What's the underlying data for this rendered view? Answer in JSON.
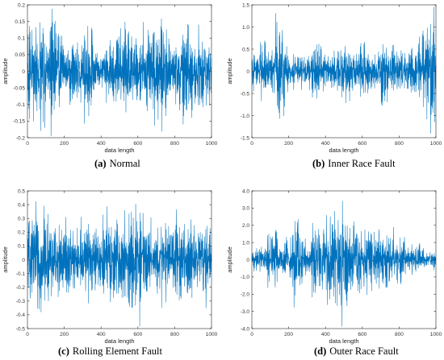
{
  "figure": {
    "panels": [
      {
        "letter": "(a)",
        "caption": "Normal"
      },
      {
        "letter": "(b)",
        "caption": "Inner Race Fault"
      },
      {
        "letter": "(c)",
        "caption": "Rolling Element Fault"
      },
      {
        "letter": "(d)",
        "caption": "Outer Race Fault"
      }
    ]
  },
  "chart_data": [
    {
      "type": "line",
      "title": "",
      "xlabel": "data length",
      "ylabel": "amplitude",
      "xlim": [
        0,
        1000
      ],
      "ylim": [
        -0.2,
        0.2
      ],
      "xticks": [
        "0",
        "200",
        "400",
        "600",
        "800",
        "1000"
      ],
      "yticks": [
        "-0.2",
        "-0.15",
        "-0.1",
        "-0.05",
        "0",
        "0.05",
        "0.1",
        "0.15",
        "0.2"
      ],
      "grid": false,
      "series": [
        {
          "color": "#0072BD",
          "x": [
            0,
            20,
            40,
            60,
            80,
            100,
            120,
            140,
            160,
            180,
            200,
            220,
            240,
            260,
            280,
            300,
            320,
            340,
            360,
            380,
            400,
            420,
            440,
            460,
            480,
            500,
            520,
            540,
            560,
            580,
            600,
            620,
            640,
            660,
            680,
            700,
            720,
            740,
            760,
            780,
            800,
            820,
            840,
            860,
            880,
            900,
            920,
            940,
            960,
            980,
            1000
          ],
          "y": [
            -0.02,
            0.15,
            -0.1,
            0.12,
            -0.17,
            0.1,
            0.08,
            0.18,
            -0.12,
            0.11,
            -0.06,
            0.06,
            -0.09,
            0.1,
            -0.08,
            0.04,
            -0.13,
            0.12,
            -0.07,
            0.05,
            -0.02,
            0.05,
            -0.1,
            0.1,
            -0.11,
            0.12,
            -0.08,
            0.13,
            -0.12,
            0.1,
            -0.09,
            0.11,
            -0.15,
            0.08,
            -0.1,
            0.14,
            -0.06,
            0.15,
            -0.09,
            0.08,
            -0.04,
            0.12,
            -0.12,
            0.16,
            -0.13,
            0.1,
            -0.09,
            0.11,
            -0.07,
            0.1,
            0.0
          ]
        }
      ]
    },
    {
      "type": "line",
      "title": "",
      "xlabel": "data length",
      "ylabel": "amplitude",
      "xlim": [
        0,
        1000
      ],
      "ylim": [
        -1.5,
        1.5
      ],
      "xticks": [
        "0",
        "200",
        "400",
        "600",
        "800",
        "1000"
      ],
      "yticks": [
        "-1.5",
        "-1.0",
        "-0.5",
        "0",
        "0.5",
        "1.0",
        "1.5"
      ],
      "grid": false,
      "series": [
        {
          "color": "#0072BD",
          "x": [
            0,
            20,
            40,
            60,
            80,
            100,
            120,
            140,
            160,
            180,
            200,
            220,
            240,
            260,
            280,
            300,
            320,
            340,
            360,
            380,
            400,
            420,
            440,
            460,
            480,
            500,
            520,
            540,
            560,
            580,
            600,
            620,
            640,
            660,
            680,
            700,
            720,
            740,
            760,
            780,
            800,
            820,
            840,
            860,
            880,
            900,
            920,
            940,
            960,
            980,
            1000
          ],
          "y": [
            0.0,
            0.45,
            -0.4,
            0.7,
            -0.6,
            0.55,
            -0.45,
            1.3,
            -1.15,
            0.5,
            -0.35,
            0.3,
            -0.4,
            0.35,
            -0.3,
            0.4,
            -0.45,
            0.55,
            -0.7,
            0.45,
            -0.35,
            0.3,
            -0.4,
            0.45,
            -0.5,
            0.6,
            -0.55,
            0.45,
            -0.4,
            0.55,
            -0.6,
            0.4,
            -0.45,
            0.35,
            -0.4,
            0.5,
            -0.9,
            0.35,
            -0.45,
            0.65,
            -0.6,
            0.4,
            -0.35,
            0.45,
            -0.5,
            0.35,
            -0.7,
            1.0,
            -0.85,
            1.2,
            0.0
          ]
        }
      ]
    },
    {
      "type": "line",
      "title": "",
      "xlabel": "data length",
      "ylabel": "amplitude",
      "xlim": [
        0,
        1000
      ],
      "ylim": [
        -0.5,
        0.5
      ],
      "xticks": [
        "0",
        "200",
        "400",
        "600",
        "800",
        "1000"
      ],
      "yticks": [
        "-0.5",
        "-0.4",
        "-0.3",
        "-0.2",
        "-0.1",
        "0",
        "0.1",
        "0.2",
        "0.3",
        "0.4",
        "0.5"
      ],
      "grid": false,
      "series": [
        {
          "color": "#0072BD",
          "x": [
            0,
            20,
            40,
            60,
            80,
            100,
            120,
            140,
            160,
            180,
            200,
            220,
            240,
            260,
            280,
            300,
            320,
            340,
            360,
            380,
            400,
            420,
            440,
            460,
            480,
            500,
            520,
            540,
            560,
            580,
            600,
            620,
            640,
            660,
            680,
            700,
            720,
            740,
            760,
            780,
            800,
            820,
            840,
            860,
            880,
            900,
            920,
            940,
            960,
            980,
            1000
          ],
          "y": [
            0.0,
            0.35,
            -0.3,
            0.4,
            -0.38,
            0.28,
            -0.3,
            0.22,
            -0.2,
            0.25,
            -0.25,
            0.3,
            -0.22,
            0.2,
            -0.18,
            0.26,
            -0.28,
            0.2,
            -0.24,
            0.22,
            -0.2,
            0.3,
            -0.35,
            0.25,
            -0.28,
            0.26,
            -0.3,
            0.32,
            -0.38,
            0.28,
            -0.42,
            0.3,
            -0.3,
            0.26,
            -0.25,
            0.24,
            -0.3,
            0.28,
            -0.22,
            0.2,
            -0.25,
            0.3,
            -0.28,
            0.22,
            -0.3,
            0.25,
            -0.22,
            0.26,
            -0.3,
            0.2,
            0.0
          ]
        }
      ]
    },
    {
      "type": "line",
      "title": "",
      "xlabel": "data length",
      "ylabel": "amplitude",
      "xlim": [
        0,
        1000
      ],
      "ylim": [
        -4.0,
        4.0
      ],
      "xticks": [
        "0",
        "200",
        "400",
        "600",
        "800",
        "1000"
      ],
      "yticks": [
        "-4.0",
        "-3.0",
        "-2.0",
        "-1.0",
        "0",
        "1.0",
        "2.0",
        "3.0",
        "4.0"
      ],
      "grid": false,
      "series": [
        {
          "color": "#0072BD",
          "x": [
            0,
            20,
            40,
            60,
            80,
            100,
            120,
            140,
            160,
            180,
            200,
            220,
            240,
            260,
            280,
            300,
            320,
            340,
            360,
            380,
            400,
            420,
            440,
            460,
            480,
            500,
            520,
            540,
            560,
            580,
            600,
            620,
            640,
            660,
            680,
            700,
            720,
            740,
            760,
            780,
            800,
            820,
            840,
            860,
            880,
            900,
            920,
            940,
            960,
            980,
            1000
          ],
          "y": [
            0.0,
            0.6,
            -0.7,
            0.8,
            -0.9,
            1.5,
            -1.8,
            0.7,
            -0.6,
            1.2,
            -1.1,
            0.8,
            -2.5,
            2.2,
            -1.0,
            0.6,
            -0.7,
            2.3,
            -2.0,
            0.9,
            -2.6,
            2.5,
            -2.7,
            0.8,
            -3.0,
            3.3,
            -2.5,
            1.0,
            -2.4,
            2.0,
            -0.8,
            2.1,
            -1.9,
            0.7,
            -1.8,
            1.6,
            -0.8,
            1.7,
            -1.6,
            0.6,
            -1.4,
            1.3,
            -0.5,
            0.8,
            -0.6,
            0.9,
            -0.5,
            0.6,
            -0.5,
            0.5,
            0.0
          ]
        }
      ]
    }
  ]
}
